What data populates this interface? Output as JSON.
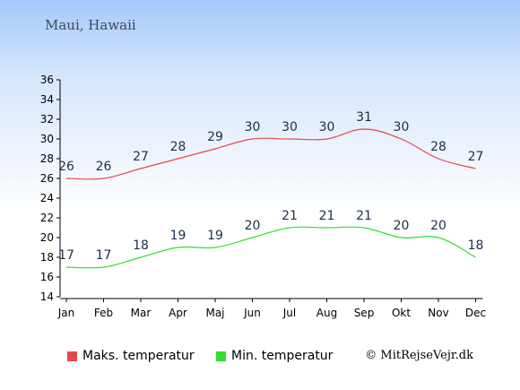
{
  "title": "Maui, Hawaii",
  "copyright": "© MitRejseVejr.dk",
  "chart_data": {
    "type": "line",
    "categories": [
      "Jan",
      "Feb",
      "Mar",
      "Apr",
      "Maj",
      "Jun",
      "Jul",
      "Aug",
      "Sep",
      "Okt",
      "Nov",
      "Dec"
    ],
    "ylim": [
      14,
      36
    ],
    "yticks": [
      14,
      16,
      18,
      20,
      22,
      24,
      26,
      28,
      30,
      32,
      34,
      36
    ],
    "grid": false,
    "legend_position": "bottom",
    "series": [
      {
        "name": "Maks. temperatur",
        "color": "#e8464e",
        "values": [
          26,
          26,
          27,
          28,
          29,
          30,
          30,
          30,
          31,
          30,
          28,
          27
        ]
      },
      {
        "name": "Min. temperatur",
        "color": "#33dd33",
        "values": [
          17,
          17,
          18,
          19,
          19,
          20,
          21,
          21,
          21,
          20,
          20,
          18
        ]
      }
    ]
  }
}
